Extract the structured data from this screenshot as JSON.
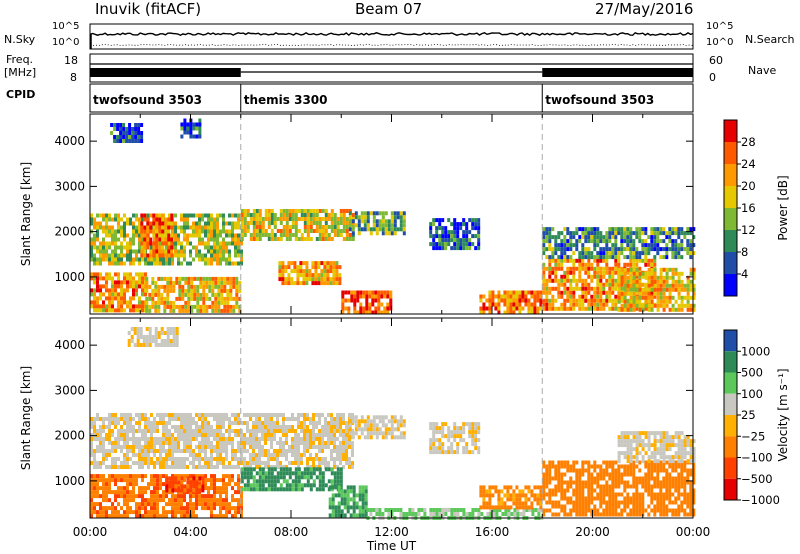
{
  "header": {
    "station": "Inuvik (fitACF)",
    "beam": "Beam 07",
    "date": "27/May/2016"
  },
  "top_panels": {
    "nsky_label": "N.Sky",
    "nsky_ticks": [
      "10^5",
      "10^0"
    ],
    "nsearch_label": "N.Search",
    "nsearch_ticks": [
      "10^5",
      "10^0"
    ],
    "freq_label_1": "Freq.",
    "freq_label_2": "[MHz]",
    "freq_ticks": [
      "18",
      "8"
    ],
    "nave_label": "Nave",
    "nave_ticks": [
      "60",
      "0"
    ],
    "cpid_label": "CPID",
    "cpid_segments": [
      {
        "name": "twofsound 3503",
        "start_h": 0,
        "end_h": 6
      },
      {
        "name": "themis 3300",
        "start_h": 6,
        "end_h": 18
      },
      {
        "name": "twofsound 3503",
        "start_h": 18,
        "end_h": 24
      }
    ]
  },
  "chart_data": [
    {
      "type": "heatmap",
      "name": "power",
      "ylabel": "Slant Range [km]",
      "xlim": [
        0,
        24
      ],
      "ylim": [
        180,
        4600
      ],
      "y_ticks": [
        "1000",
        "2000",
        "3000",
        "4000"
      ],
      "colorbar": {
        "label": "Power [dB]",
        "ticks": [
          "28",
          "24",
          "20",
          "16",
          "12",
          "8",
          "4"
        ],
        "colors": [
          "#e60000",
          "#ff5a00",
          "#ff9900",
          "#e6c800",
          "#7fb832",
          "#2e8b57",
          "#1f4ea8",
          "#0000ff"
        ]
      },
      "regions": [
        {
          "t": [
            0.0,
            6.0
          ],
          "r": [
            1300,
            2400
          ],
          "level": 16
        },
        {
          "t": [
            0.0,
            2.2
          ],
          "r": [
            250,
            1100
          ],
          "level": 22
        },
        {
          "t": [
            2.2,
            6.0
          ],
          "r": [
            250,
            1000
          ],
          "level": 20
        },
        {
          "t": [
            2.0,
            3.2
          ],
          "r": [
            1500,
            2400
          ],
          "level": 24
        },
        {
          "t": [
            0.8,
            2.0
          ],
          "r": [
            4000,
            4400
          ],
          "level": 6
        },
        {
          "t": [
            3.6,
            4.4
          ],
          "r": [
            4100,
            4500
          ],
          "level": 6
        },
        {
          "t": [
            6.0,
            10.5
          ],
          "r": [
            1800,
            2500
          ],
          "level": 18
        },
        {
          "t": [
            7.5,
            10.0
          ],
          "r": [
            850,
            1350
          ],
          "level": 22
        },
        {
          "t": [
            10.0,
            12.0
          ],
          "r": [
            200,
            700
          ],
          "level": 28
        },
        {
          "t": [
            10.3,
            12.5
          ],
          "r": [
            1950,
            2450
          ],
          "level": 12
        },
        {
          "t": [
            13.5,
            15.5
          ],
          "r": [
            1600,
            2300
          ],
          "level": 6
        },
        {
          "t": [
            15.5,
            18.0
          ],
          "r": [
            200,
            700
          ],
          "level": 24
        },
        {
          "t": [
            18.0,
            22.5
          ],
          "r": [
            300,
            1400
          ],
          "level": 22
        },
        {
          "t": [
            18.0,
            24.0
          ],
          "r": [
            1400,
            2100
          ],
          "level": 10
        },
        {
          "t": [
            21.0,
            24.0
          ],
          "r": [
            300,
            1200
          ],
          "level": 20
        }
      ]
    },
    {
      "type": "heatmap",
      "name": "velocity",
      "ylabel": "Slant Range [km]",
      "xlabel": "Time UT",
      "xlim": [
        0,
        24
      ],
      "ylim": [
        180,
        4600
      ],
      "x_ticks": [
        "00:00",
        "04:00",
        "08:00",
        "12:00",
        "16:00",
        "20:00",
        "00:00"
      ],
      "y_ticks": [
        "1000",
        "2000",
        "3000",
        "4000"
      ],
      "colorbar": {
        "label": "Velocity [m s⁻¹]",
        "ticks": [
          "1000",
          "500",
          "100",
          "25",
          "−25",
          "−100",
          "−500",
          "−1000"
        ],
        "colors": [
          "#1f4ea8",
          "#2e8b57",
          "#5cc85c",
          "#c8c8c0",
          "#ffb000",
          "#ff8000",
          "#ff4000",
          "#e60000"
        ]
      },
      "regions": [
        {
          "t": [
            0.0,
            10.5
          ],
          "r": [
            1300,
            2500
          ],
          "level": 0
        },
        {
          "t": [
            10.3,
            12.5
          ],
          "r": [
            1950,
            2450
          ],
          "level": 0
        },
        {
          "t": [
            13.5,
            15.5
          ],
          "r": [
            1600,
            2300
          ],
          "level": 0
        },
        {
          "t": [
            0.0,
            6.0
          ],
          "r": [
            250,
            1150
          ],
          "level": -200
        },
        {
          "t": [
            3.0,
            4.5
          ],
          "r": [
            800,
            1100
          ],
          "level": -500
        },
        {
          "t": [
            6.0,
            10.0
          ],
          "r": [
            850,
            1300
          ],
          "level": 400
        },
        {
          "t": [
            9.5,
            11.0
          ],
          "r": [
            250,
            900
          ],
          "level": 300
        },
        {
          "t": [
            11.0,
            18.0
          ],
          "r": [
            180,
            400
          ],
          "level": 80
        },
        {
          "t": [
            15.5,
            18.0
          ],
          "r": [
            400,
            900
          ],
          "level": -100
        },
        {
          "t": [
            18.0,
            24.0
          ],
          "r": [
            300,
            1450
          ],
          "level": -150
        },
        {
          "t": [
            21.0,
            24.0
          ],
          "r": [
            1450,
            2100
          ],
          "level": 0
        },
        {
          "t": [
            1.5,
            3.5
          ],
          "r": [
            4000,
            4400
          ],
          "level": 0
        }
      ]
    }
  ]
}
